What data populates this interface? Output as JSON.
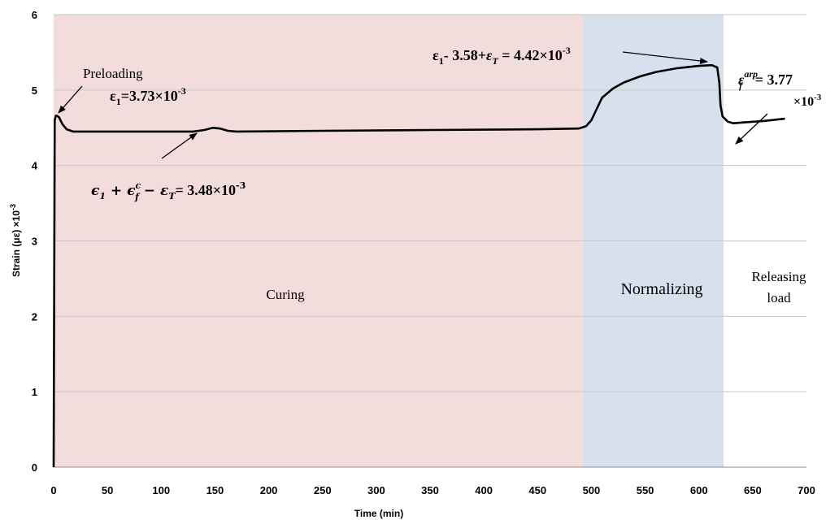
{
  "chart_data": {
    "type": "line",
    "xlabel": "Time (min)",
    "ylabel": "Strain (με) ×10",
    "ylabel_sup": "-3",
    "xlim": [
      0,
      700
    ],
    "ylim": [
      0,
      6
    ],
    "x_ticks": [
      "0",
      "50",
      "100",
      "150",
      "200",
      "250",
      "300",
      "350",
      "400",
      "450",
      "500",
      "550",
      "600",
      "650",
      "700"
    ],
    "y_ticks": [
      "0",
      "1",
      "2",
      "3",
      "4",
      "5",
      "6"
    ],
    "grid": "horizontal",
    "regions": [
      {
        "label": "Curing",
        "x": [
          0,
          492
        ],
        "color": "#f3dcdc"
      },
      {
        "label": "Normalizing",
        "x": [
          492,
          623
        ],
        "color": "#d7e1ee"
      },
      {
        "label_lines": [
          "Releasing",
          "load"
        ],
        "x": [
          623,
          700
        ],
        "color": "#ffffff"
      }
    ],
    "series": [
      {
        "color": "#000000",
        "points": [
          [
            0,
            0
          ],
          [
            1,
            4.6
          ],
          [
            2,
            4.66
          ],
          [
            3,
            4.66
          ],
          [
            5,
            4.64
          ],
          [
            8,
            4.55
          ],
          [
            12,
            4.48
          ],
          [
            18,
            4.45
          ],
          [
            25,
            4.45
          ],
          [
            50,
            4.45
          ],
          [
            100,
            4.45
          ],
          [
            130,
            4.45
          ],
          [
            140,
            4.47
          ],
          [
            148,
            4.5
          ],
          [
            155,
            4.49
          ],
          [
            162,
            4.46
          ],
          [
            170,
            4.45
          ],
          [
            250,
            4.46
          ],
          [
            350,
            4.47
          ],
          [
            450,
            4.48
          ],
          [
            488,
            4.49
          ],
          [
            495,
            4.52
          ],
          [
            500,
            4.6
          ],
          [
            505,
            4.75
          ],
          [
            510,
            4.9
          ],
          [
            520,
            5.02
          ],
          [
            530,
            5.1
          ],
          [
            545,
            5.18
          ],
          [
            560,
            5.24
          ],
          [
            580,
            5.29
          ],
          [
            600,
            5.32
          ],
          [
            612,
            5.33
          ],
          [
            617,
            5.3
          ],
          [
            619,
            5.1
          ],
          [
            620,
            4.8
          ],
          [
            622,
            4.65
          ],
          [
            627,
            4.58
          ],
          [
            632,
            4.56
          ],
          [
            640,
            4.57
          ],
          [
            660,
            4.59
          ],
          [
            680,
            4.62
          ]
        ]
      }
    ],
    "annotations": {
      "preloading_label": "Preloading",
      "eps1": "ε",
      "eps1_sub": "1",
      "eps1_value": "=3.73×10",
      "eps1_exp": "-3",
      "curing_expr_lhs": "ϵ",
      "curing_expr_sub1": "1",
      "curing_expr_mid": " + ϵ",
      "curing_expr_sup_c": "c",
      "curing_expr_sub_f": "f",
      "curing_expr_minus": " − ε",
      "curing_expr_sub_T": "T",
      "curing_expr_value": "= 3.48×10",
      "curing_expr_exp": "-3",
      "norm_expr_eps": "ε",
      "norm_expr_sub1": "1",
      "norm_expr_mid": "- 3.58+",
      "norm_expr_epsT": "ε",
      "norm_expr_subT": "T",
      "norm_expr_value": " = 4.42×10",
      "norm_expr_exp": "-3",
      "release_eps": "ε",
      "release_sup": "arp",
      "release_sub": "f",
      "release_value": "= 3.77",
      "release_unit": "×10",
      "release_exp": "-3"
    }
  }
}
